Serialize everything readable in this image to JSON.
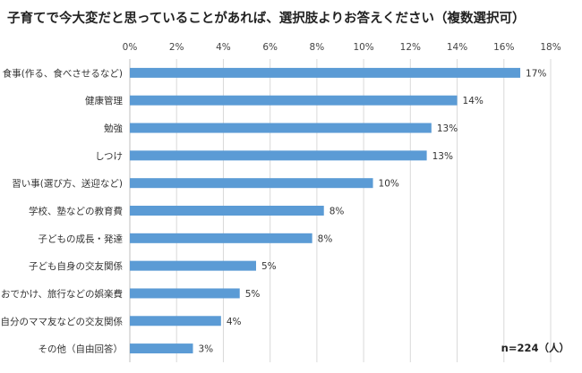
{
  "chart_data": {
    "type": "bar",
    "orientation": "horizontal",
    "title": "子育てで今大変だと思っていることがあれば、選択肢よりお答えください（複数選択可）",
    "categories": [
      "食事(作る、食べさせるなど)",
      "健康管理",
      "勉強",
      "しつけ",
      "習い事(選び方、送迎など)",
      "学校、塾などの教育費",
      "子どもの成長・発達",
      "子ども自身の交友関係",
      "おでかけ、旅行などの娯楽費",
      "自分のママ友などの交友関係",
      "その他（自由回答）"
    ],
    "values": [
      16.7,
      14.0,
      12.9,
      12.7,
      10.4,
      8.3,
      7.8,
      5.4,
      4.7,
      3.9,
      2.7
    ],
    "data_labels": [
      "17%",
      "14%",
      "13%",
      "13%",
      "10%",
      "8%",
      "8%",
      "5%",
      "5%",
      "4%",
      "3%"
    ],
    "x_ticks": [
      "0%",
      "2%",
      "4%",
      "6%",
      "8%",
      "10%",
      "12%",
      "14%",
      "16%",
      "18%"
    ],
    "xlim": [
      0,
      18
    ],
    "xlabel": "",
    "ylabel": "",
    "grid": true,
    "legend": "none",
    "bar_color": "#5b9bd5",
    "grid_color": "#d9d9d9",
    "note": "n=224（人）"
  }
}
